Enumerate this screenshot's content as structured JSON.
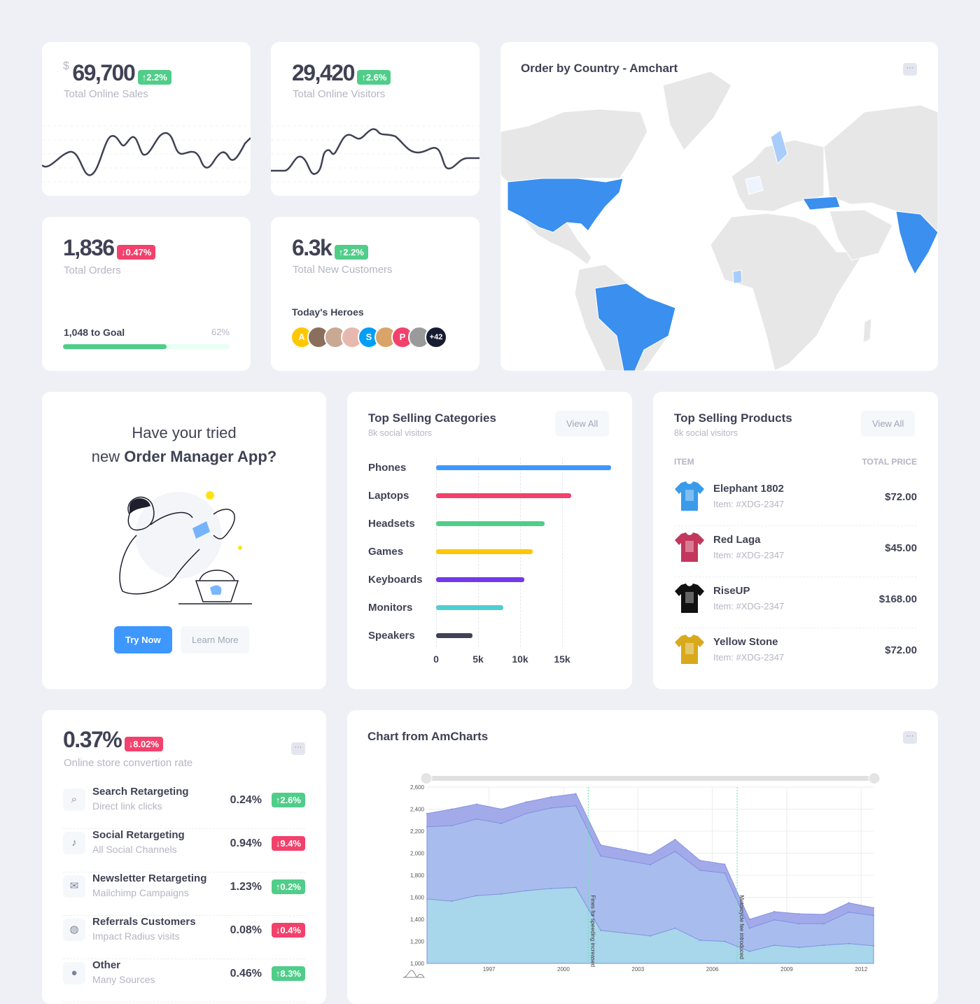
{
  "colors": {
    "success": "#50cd89",
    "danger": "#f1416c",
    "primary": "#3e97ff",
    "map_highlight": "#3a8fef",
    "map_light": "#a9cdfa"
  },
  "stats": {
    "sales": {
      "currency": "$",
      "value": "69,700",
      "change": "2.2%",
      "trend": "up",
      "label": "Total Online Sales"
    },
    "visitors": {
      "value": "29,420",
      "change": "2.6%",
      "trend": "up",
      "label": "Total Online Visitors"
    },
    "orders": {
      "value": "1,836",
      "change": "0.47%",
      "trend": "down",
      "label": "Total Orders",
      "goal_label": "1,048 to Goal",
      "goal_percent": "62%",
      "progress": 62
    },
    "customers": {
      "value": "6.3k",
      "change": "2.2%",
      "trend": "up",
      "label": "Total New Customers",
      "heroes_title": "Today's Heroes",
      "heroes": [
        {
          "initial": "A",
          "color": "#ffc700"
        },
        {
          "initial": "",
          "color": "#8a6f5c"
        },
        {
          "initial": "",
          "color": "#c9a894"
        },
        {
          "initial": "",
          "color": "#e7b8b0"
        },
        {
          "initial": "S",
          "color": "#009ef7"
        },
        {
          "initial": "",
          "color": "#d9a46a"
        },
        {
          "initial": "P",
          "color": "#f1416c"
        },
        {
          "initial": "",
          "color": "#9a9a9a"
        },
        {
          "initial": "+42",
          "color": "#181c32"
        }
      ]
    }
  },
  "map": {
    "title": "Order by Country - Amchart",
    "menu_icon": "more-dots-icon",
    "highlighted": [
      "United States",
      "Brazil",
      "India",
      "Turkey"
    ],
    "light_highlighted": [
      "Sweden",
      "France",
      "Ivory Coast"
    ]
  },
  "promo": {
    "line1": "Have your tried",
    "line2_prefix": "new ",
    "line2_bold": "Order Manager App?",
    "primary_button": "Try Now",
    "secondary_button": "Learn More"
  },
  "categories": {
    "title": "Top Selling Categories",
    "subtitle": "8k social visitors",
    "view_all": "View All",
    "chart_data": {
      "type": "bar",
      "orientation": "horizontal",
      "categories": [
        "Phones",
        "Laptops",
        "Headsets",
        "Games",
        "Keyboards",
        "Monitors",
        "Speakers"
      ],
      "values": [
        20800,
        16100,
        12900,
        11500,
        10500,
        8000,
        4300
      ],
      "colors": [
        "#3e97ff",
        "#f1416c",
        "#50cd89",
        "#ffc700",
        "#7239ea",
        "#50cdd0",
        "#3f4254"
      ],
      "xticks": [
        "0",
        "5k",
        "10k",
        "15k"
      ],
      "xlim": [
        0,
        20800
      ],
      "grid": true
    }
  },
  "products": {
    "title": "Top Selling Products",
    "subtitle": "8k social visitors",
    "view_all": "View All",
    "col_item": "ITEM",
    "col_price": "TOTAL PRICE",
    "items": [
      {
        "name": "Elephant 1802",
        "sku": "Item: #XDG-2347",
        "price": "$72.00",
        "color": "#3a9bea"
      },
      {
        "name": "Red Laga",
        "sku": "Item: #XDG-2347",
        "price": "$45.00",
        "color": "#c2375b"
      },
      {
        "name": "RiseUP",
        "sku": "Item: #XDG-2347",
        "price": "$168.00",
        "color": "#111111"
      },
      {
        "name": "Yellow Stone",
        "sku": "Item: #XDG-2347",
        "price": "$72.00",
        "color": "#d8a91c"
      }
    ]
  },
  "conversion": {
    "value": "0.37%",
    "change": "8.02%",
    "trend": "down",
    "label": "Online store convertion rate",
    "rows": [
      {
        "title": "Search Retargeting",
        "sub": "Direct link clicks",
        "value": "0.24%",
        "change": "2.6%",
        "trend": "up",
        "icon": "search-icon",
        "glyph": "⌕"
      },
      {
        "title": "Social Retargeting",
        "sub": "All Social Channels",
        "value": "0.94%",
        "change": "9.4%",
        "trend": "down",
        "icon": "tiktok-icon",
        "glyph": "♪"
      },
      {
        "title": "Newsletter Retargeting",
        "sub": "Mailchimp Campaigns",
        "value": "1.23%",
        "change": "0.2%",
        "trend": "up",
        "icon": "envelope-icon",
        "glyph": "✉"
      },
      {
        "title": "Referrals Customers",
        "sub": "Impact Radius visits",
        "value": "0.08%",
        "change": "0.4%",
        "trend": "down",
        "icon": "ball-icon",
        "glyph": "◍"
      },
      {
        "title": "Other",
        "sub": "Many Sources",
        "value": "0.46%",
        "change": "8.3%",
        "trend": "up",
        "icon": "chat-icon",
        "glyph": "●"
      }
    ]
  },
  "amchart": {
    "title": "Chart from AmCharts",
    "chart_data": {
      "type": "area",
      "stacked": true,
      "x": [
        1994.5,
        1995.5,
        1996.5,
        1997.5,
        1998.5,
        1999.5,
        2000.5,
        2001.5,
        2002.5,
        2003.5,
        2004.5,
        2005.5,
        2006.5,
        2007.5,
        2008.5,
        2009.5,
        2010.5,
        2011.5,
        2012.5
      ],
      "series": [
        {
          "values": [
            1585,
            1565,
            1615,
            1630,
            1660,
            1680,
            1690,
            1300,
            1275,
            1250,
            1320,
            1210,
            1200,
            1110,
            1165,
            1145,
            1165,
            1180,
            1160
          ],
          "color": "#a8d8ea"
        },
        {
          "values": [
            2240,
            2250,
            2310,
            2270,
            2360,
            2410,
            2430,
            1975,
            1935,
            1895,
            2015,
            1845,
            1820,
            1320,
            1395,
            1360,
            1360,
            1465,
            1435
          ],
          "color": "#a9bfee"
        },
        {
          "values": [
            2360,
            2400,
            2445,
            2400,
            2465,
            2510,
            2540,
            2075,
            2030,
            1985,
            2125,
            1935,
            1900,
            1400,
            1470,
            1450,
            1445,
            1550,
            1505
          ],
          "color": "#9fa6e8"
        }
      ],
      "yticks": [
        "1,000",
        "1,200",
        "1,400",
        "1,600",
        "1,800",
        "2,000",
        "2,200",
        "2,400",
        "2,600"
      ],
      "ylim": [
        1000,
        2600
      ],
      "xticks": [
        "1997",
        "2000",
        "2003",
        "2006",
        "2009",
        "2012"
      ],
      "xlim": [
        1994.5,
        2012.5
      ],
      "grid": true,
      "annotations": [
        {
          "x": 2001,
          "label": "Fines for speeding increased"
        },
        {
          "x": 2007,
          "label": "Motorcycle fee introduced"
        }
      ]
    }
  }
}
